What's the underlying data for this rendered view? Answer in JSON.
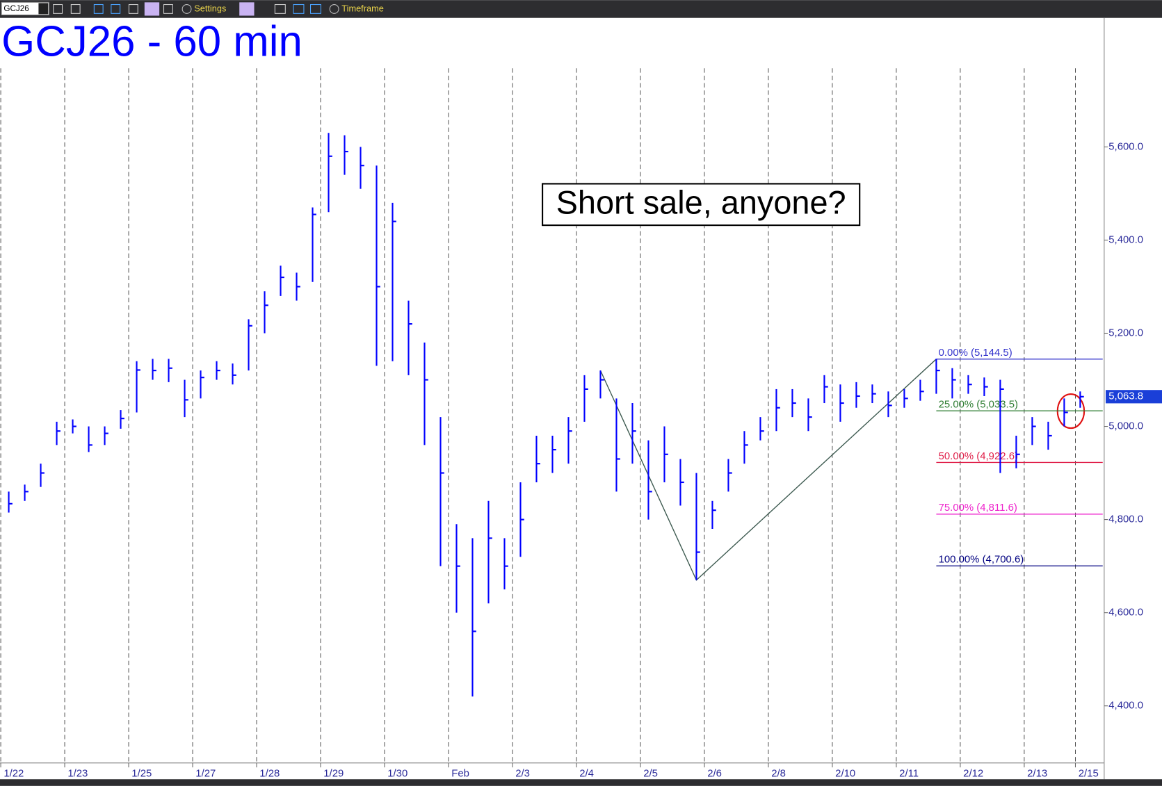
{
  "toolbar": {
    "symbol": "GCJ26",
    "settings": "Settings",
    "timeframe": "Timeframe"
  },
  "chart_data": {
    "type": "ohlc",
    "title": "GCJ26 - 60 min",
    "annotation": "Short sale, anyone?",
    "color": "#0000ff",
    "xlim": [
      0,
      17.25
    ],
    "ylim": [
      4277.5,
      5877
    ],
    "yticks": [
      {
        "value": 4400,
        "label": "4,400.0"
      },
      {
        "value": 4600,
        "label": "4,600.0"
      },
      {
        "value": 4800,
        "label": "4,800.0"
      },
      {
        "value": 5000,
        "label": "5,000.0"
      },
      {
        "value": 5200,
        "label": "5,200.0"
      },
      {
        "value": 5400,
        "label": "5,400.0"
      },
      {
        "value": 5600,
        "label": "5,600.0"
      }
    ],
    "xticks": [
      {
        "value": 0,
        "label": "1/22"
      },
      {
        "value": 1,
        "label": "1/23"
      },
      {
        "value": 2,
        "label": "1/25"
      },
      {
        "value": 3,
        "label": "1/27"
      },
      {
        "value": 4,
        "label": "1/28"
      },
      {
        "value": 5,
        "label": "1/29"
      },
      {
        "value": 6,
        "label": "1/30"
      },
      {
        "value": 7,
        "label": "Feb"
      },
      {
        "value": 8,
        "label": "2/3"
      },
      {
        "value": 9,
        "label": "2/4"
      },
      {
        "value": 10,
        "label": "2/5"
      },
      {
        "value": 11,
        "label": "2/6"
      },
      {
        "value": 12,
        "label": "2/8"
      },
      {
        "value": 13,
        "label": "2/10"
      },
      {
        "value": 14,
        "label": "2/11"
      },
      {
        "value": 15,
        "label": "2/12"
      },
      {
        "value": 16,
        "label": "2/13"
      },
      {
        "value": 16.8,
        "label": "2/15"
      }
    ],
    "grid": "dashed",
    "x": [
      0.125,
      0.375,
      0.625,
      0.875,
      1.125,
      1.375,
      1.625,
      1.875,
      2.125,
      2.375,
      2.625,
      2.875,
      3.125,
      3.375,
      3.625,
      3.875,
      4.125,
      4.375,
      4.625,
      4.875,
      5.125,
      5.375,
      5.625,
      5.875,
      6.125,
      6.375,
      6.625,
      6.875,
      7.125,
      7.375,
      7.625,
      7.875,
      8.125,
      8.375,
      8.625,
      8.875,
      9.125,
      9.375,
      9.625,
      9.875,
      10.125,
      10.375,
      10.625,
      10.875,
      11.125,
      11.375,
      11.625,
      11.875,
      12.125,
      12.375,
      12.625,
      12.875,
      13.125,
      13.375,
      13.625,
      13.875,
      14.125,
      14.375,
      14.625,
      14.875,
      15.125,
      15.375,
      15.625,
      15.875,
      16.125,
      16.375,
      16.625,
      16.875
    ],
    "high": [
      4860,
      4875,
      4920,
      5010,
      5015,
      5000,
      5000,
      5035,
      5140,
      5145,
      5145,
      5100,
      5120,
      5140,
      5135,
      5230,
      5290,
      5345,
      5330,
      5470,
      5630,
      5625,
      5600,
      5560,
      5480,
      5270,
      5180,
      5020,
      4790,
      4760,
      4840,
      4760,
      4880,
      4980,
      4980,
      5020,
      5110,
      5120,
      5060,
      5050,
      4970,
      5000,
      4930,
      4900,
      4840,
      4930,
      4990,
      5020,
      5080,
      5080,
      5060,
      5110,
      5090,
      5095,
      5090,
      5075,
      5080,
      5100,
      5145,
      5125,
      5110,
      5105,
      5100,
      4980,
      5020,
      5010,
      5060,
      5075
    ],
    "low": [
      4815,
      4840,
      4870,
      4960,
      4985,
      4945,
      4960,
      4995,
      5030,
      5100,
      5095,
      5020,
      5060,
      5100,
      5090,
      5120,
      5200,
      5280,
      5270,
      5310,
      5460,
      5540,
      5510,
      5130,
      5140,
      5110,
      4960,
      4700,
      4600,
      4420,
      4620,
      4650,
      4720,
      4880,
      4900,
      4920,
      5010,
      5060,
      4860,
      4920,
      4800,
      4880,
      4830,
      4670,
      4780,
      4860,
      4920,
      4970,
      4990,
      5020,
      4990,
      5050,
      5010,
      5040,
      5050,
      5020,
      5040,
      5055,
      5070,
      5060,
      5070,
      5065,
      4900,
      4910,
      4960,
      4950,
      5000,
      5040
    ],
    "close": [
      4834,
      4860,
      4900,
      4990,
      5000,
      4960,
      4985,
      5017,
      5121,
      5120,
      5125,
      5057,
      5105,
      5120,
      5110,
      5216,
      5260,
      5320,
      5300,
      5455,
      5580,
      5590,
      5560,
      5300,
      5440,
      5220,
      5100,
      4900,
      4700,
      4560,
      4760,
      4700,
      4800,
      4920,
      4950,
      4990,
      5080,
      5100,
      4930,
      4990,
      4860,
      4940,
      4880,
      4730,
      4820,
      4900,
      4960,
      4990,
      5040,
      5050,
      5020,
      5085,
      5050,
      5065,
      5070,
      5045,
      5060,
      5075,
      5120,
      5100,
      5090,
      5085,
      5080,
      4940,
      5000,
      4980,
      5030,
      5063.8
    ],
    "last_price": {
      "value": 5063.8,
      "label": "5,063.8"
    },
    "trendline": {
      "x": [
        9.375,
        10.875,
        14.625
      ],
      "y": [
        5120,
        4670,
        5144.5
      ],
      "color": "#3d5a50"
    },
    "fib": [
      {
        "label": "0.00% (5,144.5)",
        "value": 5144.5,
        "color": "#3333cc"
      },
      {
        "label": "25.00% (5,033.5)",
        "value": 5033.5,
        "color": "#2e7d32"
      },
      {
        "label": "50.00% (4,922.6)",
        "value": 4922.6,
        "color": "#e0204a"
      },
      {
        "label": "75.00% (4,811.6)",
        "value": 4811.6,
        "color": "#ee22cc"
      },
      {
        "label": "100.00% (4,700.6)",
        "value": 4700.6,
        "color": "#000080"
      }
    ]
  }
}
